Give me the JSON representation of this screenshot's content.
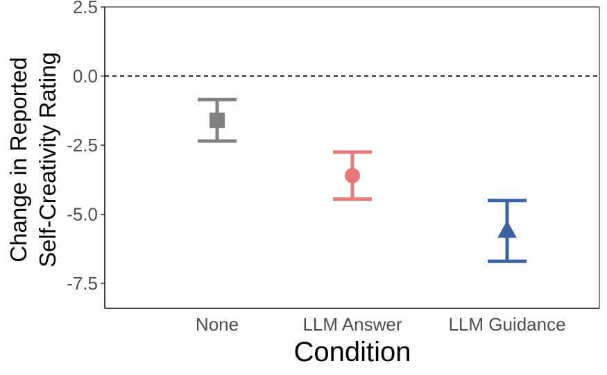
{
  "chart_data": {
    "type": "scatter",
    "xlabel": "Condition",
    "ylabel": [
      "Change in Reported",
      "Self-Creativity Rating"
    ],
    "categories": [
      "None",
      "LLM Answer",
      "LLM Guidance"
    ],
    "ylim": [
      -8.4,
      2.5
    ],
    "yticks": [
      2.5,
      0.0,
      -2.5,
      -5.0,
      -7.5
    ],
    "ytick_labels": [
      "2.5",
      "0.0",
      "-2.5",
      "-5.0",
      "-7.5"
    ],
    "reference_line": {
      "y": 0,
      "style": "dashed"
    },
    "grid": false,
    "points": [
      {
        "category": "None",
        "mean": -1.6,
        "ci_low": -2.35,
        "ci_high": -0.85,
        "shape": "square",
        "color": "#808080"
      },
      {
        "category": "LLM Answer",
        "mean": -3.6,
        "ci_low": -4.45,
        "ci_high": -2.75,
        "shape": "circle",
        "color": "#e87878"
      },
      {
        "category": "LLM Guidance",
        "mean": -5.6,
        "ci_low": -6.7,
        "ci_high": -4.5,
        "shape": "triangle",
        "color": "#3d63a6"
      }
    ]
  }
}
